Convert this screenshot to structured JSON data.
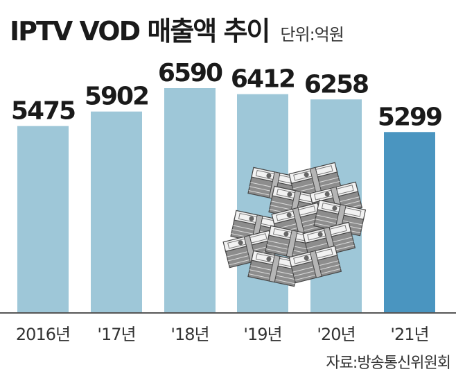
{
  "header": {
    "title": "IPTV VOD 매출액 추이",
    "unit": "단위:억원"
  },
  "footer": {
    "source": "자료:방송통신위원회"
  },
  "colors": {
    "bar": "#9ec7d8",
    "bar_highlight": "#4a95c0",
    "label": "#1a1a1a",
    "axis": "#333333"
  },
  "illustration": {
    "icon": "money-stack-icon"
  },
  "chart_data": {
    "type": "bar",
    "categories": [
      "2016년",
      "'17년",
      "'18년",
      "'19년",
      "'20년",
      "'21년"
    ],
    "values": [
      5475,
      5902,
      6590,
      6412,
      6258,
      5299
    ],
    "highlight_index": 5,
    "title": "IPTV VOD 매출액 추이",
    "xlabel": "",
    "ylabel": "",
    "unit": "단위:억원",
    "data_labels": true,
    "grid": false,
    "legend": "none"
  }
}
